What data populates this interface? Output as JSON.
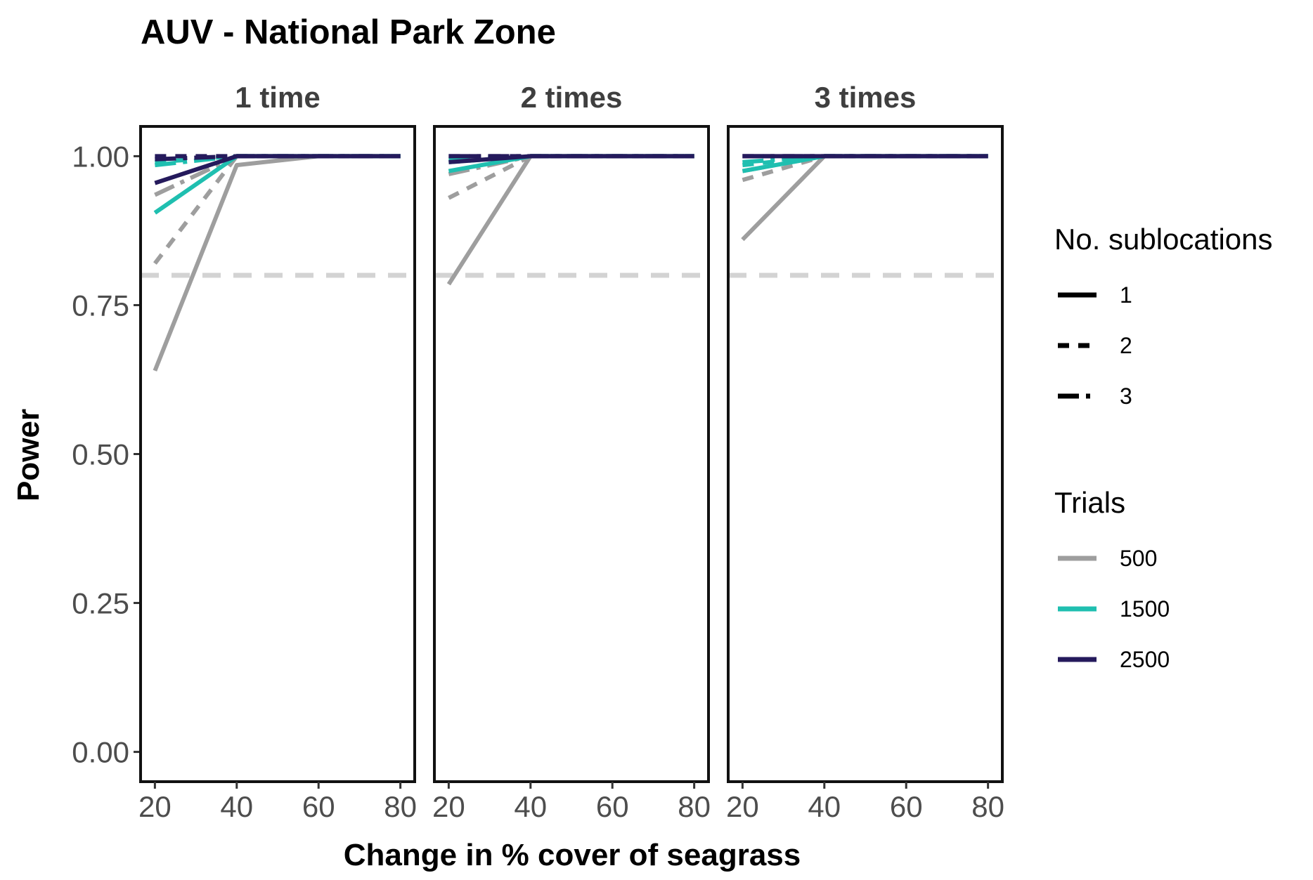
{
  "chart_data": {
    "type": "line",
    "title": "AUV - National Park Zone",
    "xlabel": "Change in % cover of seagrass",
    "ylabel": "Power",
    "xlim": [
      16.5,
      83.5
    ],
    "ylim": [
      -0.05,
      1.05
    ],
    "x_ticks": [
      20,
      40,
      60,
      80
    ],
    "y_ticks": [
      0.0,
      0.25,
      0.5,
      0.75,
      1.0
    ],
    "y_tick_labels": [
      "0.00",
      "0.25",
      "0.50",
      "0.75",
      "1.00"
    ],
    "reference_line": {
      "y": 0.8,
      "color": "#d3d3d3",
      "style": "dashed"
    },
    "legend": {
      "placement": "right",
      "linetype_title": "No. sublocations",
      "linetypes": [
        {
          "label": "1",
          "style": "solid"
        },
        {
          "label": "2",
          "style": "dashed"
        },
        {
          "label": "3",
          "style": "longdash"
        }
      ],
      "color_title": "Trials",
      "colors": [
        {
          "label": "500",
          "color": "#9e9e9e"
        },
        {
          "label": "1500",
          "color": "#1fbfb0"
        },
        {
          "label": "2500",
          "color": "#251a5c"
        }
      ]
    },
    "panels": [
      {
        "label": "1 time",
        "series": [
          {
            "trials": "500",
            "sublocations": "1",
            "x": [
              20,
              40,
              60,
              80
            ],
            "y": [
              0.64,
              0.985,
              1.0,
              1.0
            ]
          },
          {
            "trials": "500",
            "sublocations": "2",
            "x": [
              20,
              40,
              60,
              80
            ],
            "y": [
              0.82,
              1.0,
              1.0,
              1.0
            ]
          },
          {
            "trials": "500",
            "sublocations": "3",
            "x": [
              20,
              40,
              60,
              80
            ],
            "y": [
              0.935,
              1.0,
              1.0,
              1.0
            ]
          },
          {
            "trials": "1500",
            "sublocations": "1",
            "x": [
              20,
              40,
              60,
              80
            ],
            "y": [
              0.905,
              1.0,
              1.0,
              1.0
            ]
          },
          {
            "trials": "1500",
            "sublocations": "2",
            "x": [
              20,
              40,
              60,
              80
            ],
            "y": [
              0.99,
              1.0,
              1.0,
              1.0
            ]
          },
          {
            "trials": "1500",
            "sublocations": "3",
            "x": [
              20,
              40,
              60,
              80
            ],
            "y": [
              0.985,
              1.0,
              1.0,
              1.0
            ]
          },
          {
            "trials": "2500",
            "sublocations": "1",
            "x": [
              20,
              40,
              60,
              80
            ],
            "y": [
              0.955,
              1.0,
              1.0,
              1.0
            ]
          },
          {
            "trials": "2500",
            "sublocations": "2",
            "x": [
              20,
              40,
              60,
              80
            ],
            "y": [
              1.0,
              1.0,
              1.0,
              1.0
            ]
          },
          {
            "trials": "2500",
            "sublocations": "3",
            "x": [
              20,
              40,
              60,
              80
            ],
            "y": [
              0.995,
              1.0,
              1.0,
              1.0
            ]
          }
        ]
      },
      {
        "label": "2 times",
        "series": [
          {
            "trials": "500",
            "sublocations": "1",
            "x": [
              20,
              40,
              60,
              80
            ],
            "y": [
              0.785,
              1.0,
              1.0,
              1.0
            ]
          },
          {
            "trials": "500",
            "sublocations": "2",
            "x": [
              20,
              40,
              60,
              80
            ],
            "y": [
              0.93,
              1.0,
              1.0,
              1.0
            ]
          },
          {
            "trials": "500",
            "sublocations": "3",
            "x": [
              20,
              40,
              60,
              80
            ],
            "y": [
              0.97,
              1.0,
              1.0,
              1.0
            ]
          },
          {
            "trials": "1500",
            "sublocations": "1",
            "x": [
              20,
              40,
              60,
              80
            ],
            "y": [
              0.975,
              1.0,
              1.0,
              1.0
            ]
          },
          {
            "trials": "1500",
            "sublocations": "2",
            "x": [
              20,
              40,
              60,
              80
            ],
            "y": [
              0.99,
              1.0,
              1.0,
              1.0
            ]
          },
          {
            "trials": "1500",
            "sublocations": "3",
            "x": [
              20,
              40,
              60,
              80
            ],
            "y": [
              0.995,
              1.0,
              1.0,
              1.0
            ]
          },
          {
            "trials": "2500",
            "sublocations": "1",
            "x": [
              20,
              40,
              60,
              80
            ],
            "y": [
              0.99,
              1.0,
              1.0,
              1.0
            ]
          },
          {
            "trials": "2500",
            "sublocations": "2",
            "x": [
              20,
              40,
              60,
              80
            ],
            "y": [
              1.0,
              1.0,
              1.0,
              1.0
            ]
          },
          {
            "trials": "2500",
            "sublocations": "3",
            "x": [
              20,
              40,
              60,
              80
            ],
            "y": [
              1.0,
              1.0,
              1.0,
              1.0
            ]
          }
        ]
      },
      {
        "label": "3 times",
        "series": [
          {
            "trials": "500",
            "sublocations": "1",
            "x": [
              20,
              40,
              60,
              80
            ],
            "y": [
              0.86,
              1.0,
              1.0,
              1.0
            ]
          },
          {
            "trials": "500",
            "sublocations": "2",
            "x": [
              20,
              40,
              60,
              80
            ],
            "y": [
              0.96,
              1.0,
              1.0,
              1.0
            ]
          },
          {
            "trials": "500",
            "sublocations": "3",
            "x": [
              20,
              40,
              60,
              80
            ],
            "y": [
              0.975,
              1.0,
              1.0,
              1.0
            ]
          },
          {
            "trials": "1500",
            "sublocations": "1",
            "x": [
              20,
              40,
              60,
              80
            ],
            "y": [
              0.975,
              1.0,
              1.0,
              1.0
            ]
          },
          {
            "trials": "1500",
            "sublocations": "2",
            "x": [
              20,
              40,
              60,
              80
            ],
            "y": [
              0.985,
              1.0,
              1.0,
              1.0
            ]
          },
          {
            "trials": "1500",
            "sublocations": "3",
            "x": [
              20,
              40,
              60,
              80
            ],
            "y": [
              0.99,
              1.0,
              1.0,
              1.0
            ]
          },
          {
            "trials": "2500",
            "sublocations": "1",
            "x": [
              20,
              40,
              60,
              80
            ],
            "y": [
              1.0,
              1.0,
              1.0,
              1.0
            ]
          },
          {
            "trials": "2500",
            "sublocations": "2",
            "x": [
              20,
              40,
              60,
              80
            ],
            "y": [
              1.0,
              1.0,
              1.0,
              1.0
            ]
          },
          {
            "trials": "2500",
            "sublocations": "3",
            "x": [
              20,
              40,
              60,
              80
            ],
            "y": [
              1.0,
              1.0,
              1.0,
              1.0
            ]
          }
        ]
      }
    ]
  }
}
